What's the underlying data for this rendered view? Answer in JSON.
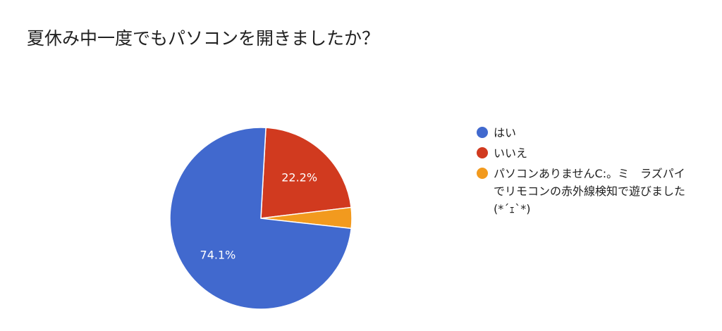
{
  "chart_data": {
    "type": "pie",
    "title": "夏休み中一度でもパソコンを開きましたか？",
    "slices": [
      {
        "label": "はい",
        "value": 74.1,
        "data_label": "74.1%",
        "color": "#4169CE"
      },
      {
        "label": "いいえ",
        "value": 22.2,
        "data_label": "22.2%",
        "color": "#D13A1F"
      },
      {
        "label": "パソコンありませんC:。ミ　ラズパイでリモコンの赤外線検知で遊びました(*´ｪ`*)",
        "value": 3.7,
        "data_label": "",
        "color": "#F29A1E"
      }
    ],
    "legend_position": "right"
  }
}
